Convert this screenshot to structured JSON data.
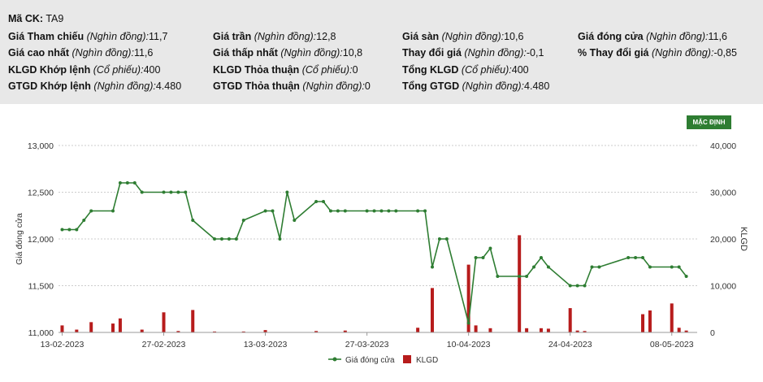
{
  "info": {
    "ticker_label": "Mã CK:",
    "ticker": "TA9",
    "rows": [
      [
        {
          "label": "Giá Tham chiếu",
          "unit": "(Nghìn đồng)",
          "value": "11,7"
        },
        {
          "label": "Giá trần",
          "unit": "(Nghìn đồng)",
          "value": "12,8"
        },
        {
          "label": "Giá sàn",
          "unit": "(Nghìn đồng)",
          "value": "10,6"
        },
        {
          "label": "Giá đóng cửa",
          "unit": "(Nghìn đồng)",
          "value": "11,6"
        }
      ],
      [
        {
          "label": "Giá cao nhất",
          "unit": "(Nghìn đồng)",
          "value": "11,6"
        },
        {
          "label": "Giá thấp nhất",
          "unit": "(Nghìn đồng)",
          "value": "10,8"
        },
        {
          "label": "Thay đổi giá",
          "unit": "(Nghìn đồng)",
          "value": "-0,1"
        },
        {
          "label": "% Thay đổi giá",
          "unit": "(Nghìn đồng)",
          "value": "-0,85"
        }
      ],
      [
        {
          "label": "KLGD Khớp lệnh",
          "unit": "(Cổ phiếu)",
          "value": "400"
        },
        {
          "label": "KLGD Thỏa thuận",
          "unit": "(Cổ phiếu)",
          "value": "0"
        },
        {
          "label": "Tổng KLGD",
          "unit": "(Cổ phiếu)",
          "value": "400"
        },
        null
      ],
      [
        {
          "label": "GTGD Khớp lệnh",
          "unit": "(Nghìn đồng)",
          "value": "4.480"
        },
        {
          "label": "GTGD Thỏa thuận",
          "unit": "(Nghìn đồng)",
          "value": "0"
        },
        {
          "label": "Tổng GTGD",
          "unit": "(Nghìn đồng)",
          "value": "4.480"
        },
        null
      ]
    ]
  },
  "badge": "MẶC ĐỊNH",
  "colors": {
    "price": "#2e7d32",
    "volume": "#b71c1c",
    "grid": "#cccccc",
    "text": "#333333"
  },
  "chart_data": {
    "type": "line",
    "ylabel": "Giá đóng cửa",
    "y2label": "KLGD",
    "ylim": [
      11000,
      13000
    ],
    "y2lim": [
      0,
      40000
    ],
    "yticks": [
      "11,000",
      "11,500",
      "12,000",
      "12,500",
      "13,000"
    ],
    "y2ticks": [
      "0",
      "10,000",
      "20,000",
      "30,000",
      "40,000"
    ],
    "xticks": [
      "13-02-2023",
      "27-02-2023",
      "13-03-2023",
      "27-03-2023",
      "10-04-2023",
      "24-04-2023",
      "08-05-2023"
    ],
    "xtick_positions": [
      0,
      14,
      28,
      42,
      56,
      70,
      84
    ],
    "xlim": [
      -0.5,
      87.5
    ],
    "legend_position": "bottom-center",
    "grid": "horizontal",
    "series": [
      {
        "name": "Giá đóng cửa",
        "type": "line",
        "points": [
          [
            0,
            12100
          ],
          [
            1,
            12100
          ],
          [
            2,
            12100
          ],
          [
            3,
            12200
          ],
          [
            4,
            12300
          ],
          [
            7,
            12300
          ],
          [
            8,
            12600
          ],
          [
            9,
            12600
          ],
          [
            10,
            12600
          ],
          [
            11,
            12500
          ],
          [
            14,
            12500
          ],
          [
            15,
            12500
          ],
          [
            16,
            12500
          ],
          [
            17,
            12500
          ],
          [
            18,
            12200
          ],
          [
            21,
            12000
          ],
          [
            22,
            12000
          ],
          [
            23,
            12000
          ],
          [
            24,
            12000
          ],
          [
            25,
            12200
          ],
          [
            28,
            12300
          ],
          [
            29,
            12300
          ],
          [
            30,
            12000
          ],
          [
            31,
            12500
          ],
          [
            32,
            12200
          ],
          [
            35,
            12400
          ],
          [
            36,
            12400
          ],
          [
            37,
            12300
          ],
          [
            38,
            12300
          ],
          [
            39,
            12300
          ],
          [
            42,
            12300
          ],
          [
            43,
            12300
          ],
          [
            44,
            12300
          ],
          [
            45,
            12300
          ],
          [
            46,
            12300
          ],
          [
            49,
            12300
          ],
          [
            50,
            12300
          ],
          [
            51,
            11700
          ],
          [
            52,
            12000
          ],
          [
            53,
            12000
          ],
          [
            56,
            11100
          ],
          [
            57,
            11800
          ],
          [
            58,
            11800
          ],
          [
            59,
            11900
          ],
          [
            60,
            11600
          ],
          [
            63,
            11600
          ],
          [
            64,
            11600
          ],
          [
            65,
            11700
          ],
          [
            66,
            11800
          ],
          [
            67,
            11700
          ],
          [
            70,
            11500
          ],
          [
            71,
            11500
          ],
          [
            72,
            11500
          ],
          [
            73,
            11700
          ],
          [
            74,
            11700
          ],
          [
            78,
            11800
          ],
          [
            79,
            11800
          ],
          [
            80,
            11800
          ],
          [
            81,
            11700
          ],
          [
            84,
            11700
          ],
          [
            85,
            11700
          ],
          [
            86,
            11600
          ]
        ]
      },
      {
        "name": "KLGD",
        "type": "bar",
        "axis": "right",
        "points": [
          [
            0,
            1500
          ],
          [
            2,
            600
          ],
          [
            4,
            2200
          ],
          [
            7,
            1900
          ],
          [
            8,
            3000
          ],
          [
            11,
            600
          ],
          [
            14,
            4300
          ],
          [
            16,
            300
          ],
          [
            18,
            4800
          ],
          [
            21,
            200
          ],
          [
            25,
            200
          ],
          [
            28,
            500
          ],
          [
            35,
            300
          ],
          [
            39,
            400
          ],
          [
            49,
            1000
          ],
          [
            51,
            9500
          ],
          [
            56,
            14500
          ],
          [
            57,
            1500
          ],
          [
            59,
            900
          ],
          [
            63,
            20800
          ],
          [
            64,
            900
          ],
          [
            66,
            900
          ],
          [
            67,
            800
          ],
          [
            70,
            5200
          ],
          [
            71,
            400
          ],
          [
            72,
            300
          ],
          [
            80,
            3900
          ],
          [
            81,
            4700
          ],
          [
            84,
            6200
          ],
          [
            85,
            1000
          ],
          [
            86,
            400
          ]
        ]
      }
    ]
  }
}
